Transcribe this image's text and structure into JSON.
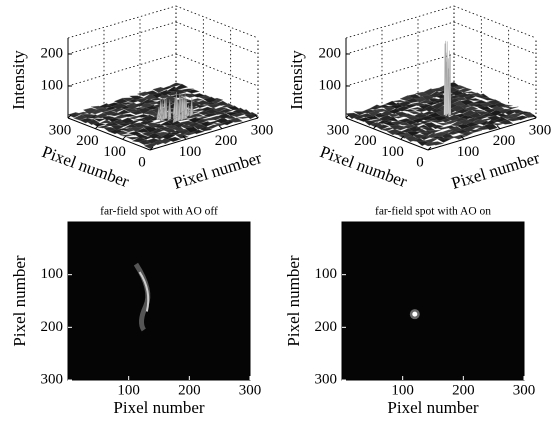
{
  "chart_data": [
    {
      "type": "surface",
      "xlabel": "Pixel number",
      "ylabel": "Pixel number",
      "zlabel": "Intensity",
      "xlim": [
        0,
        300
      ],
      "ylim": [
        0,
        300
      ],
      "zlim": [
        0,
        250
      ],
      "xticks": [
        100,
        200,
        300
      ],
      "yticks": [
        0,
        100,
        200,
        300
      ],
      "zticks": [
        100,
        200
      ]
    },
    {
      "type": "surface",
      "xlabel": "Pixel number",
      "ylabel": "Pixel number",
      "zlabel": "Intensity",
      "xlim": [
        0,
        300
      ],
      "ylim": [
        0,
        300
      ],
      "zlim": [
        0,
        250
      ],
      "xticks": [
        100,
        200,
        300
      ],
      "yticks": [
        0,
        100,
        200,
        300
      ],
      "zticks": [
        100,
        200
      ]
    },
    {
      "type": "image",
      "title": "far-field spot with AO off",
      "xlabel": "Pixel number",
      "ylabel": "Pixel number",
      "xlim": [
        0,
        300
      ],
      "ylim": [
        0,
        300
      ],
      "xticks": [
        100,
        200,
        300
      ],
      "yticks": [
        100,
        200,
        300
      ]
    },
    {
      "type": "image",
      "title": "far-field spot with AO on",
      "xlabel": "Pixel number",
      "ylabel": "Pixel number",
      "xlim": [
        0,
        300
      ],
      "ylim": [
        0,
        300
      ],
      "xticks": [
        100,
        200,
        300
      ],
      "yticks": [
        100,
        200,
        300
      ]
    }
  ]
}
